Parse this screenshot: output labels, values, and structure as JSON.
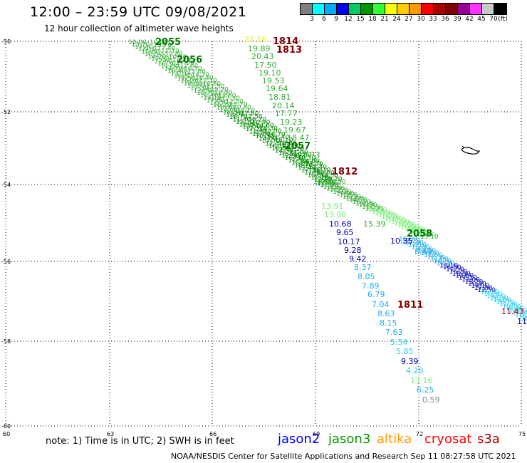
{
  "title": "12:00 – 23:59 UTC 09/08/2021",
  "subtitle": "12 hour collection of altimeter wave heights",
  "legend": {
    "colors": [
      "#7f7f7f",
      "#00ffff",
      "#00aaff",
      "#0000ff",
      "#00cc66",
      "#009900",
      "#33ff33",
      "#ffff00",
      "#ffcc00",
      "#ff9900",
      "#ff0000",
      "#aa0000",
      "#800000",
      "#990099",
      "#ff33ff",
      "#c8c8c8",
      "#000000"
    ],
    "labels": [
      "3",
      "6",
      "9",
      "12",
      "15",
      "18",
      "21",
      "24",
      "27",
      "30",
      "33",
      "36",
      "39",
      "42",
      "45",
      "70",
      "(ft)"
    ]
  },
  "axes": {
    "lat_labels": [
      "-50",
      "-52",
      "-54",
      "-56",
      "-58",
      "-60"
    ],
    "lon_labels": [
      "60",
      "63",
      "66",
      "69",
      "72",
      "75"
    ]
  },
  "pass_labels": [
    {
      "text": "2055",
      "color": "#007700"
    },
    {
      "text": "1814",
      "color": "#800000"
    },
    {
      "text": "1813",
      "color": "#800000"
    },
    {
      "text": "2056",
      "color": "#007700"
    },
    {
      "text": "2057",
      "color": "#007700"
    },
    {
      "text": "1812",
      "color": "#800000"
    },
    {
      "text": "2058",
      "color": "#007700"
    },
    {
      "text": "1811",
      "color": "#800000"
    }
  ],
  "track_values": [
    {
      "text": "21.16",
      "color": "#eeee00"
    },
    {
      "text": "19.89",
      "color": "#33aa33"
    },
    {
      "text": "20.43",
      "color": "#33aa33"
    },
    {
      "text": "17.50",
      "color": "#33aa33"
    },
    {
      "text": "19.10",
      "color": "#33aa33"
    },
    {
      "text": "19.53",
      "color": "#33aa33"
    },
    {
      "text": "19.64",
      "color": "#33aa33"
    },
    {
      "text": "18.81",
      "color": "#33aa33"
    },
    {
      "text": "20.14",
      "color": "#33aa33"
    },
    {
      "text": "17.77",
      "color": "#33aa33"
    },
    {
      "text": "19.23",
      "color": "#33aa33"
    },
    {
      "text": "19.67",
      "color": "#33aa33"
    },
    {
      "text": "18.47",
      "color": "#33aa33"
    },
    {
      "text": "18.73",
      "color": "#33aa33"
    },
    {
      "text": "17.06",
      "color": "#33aa33"
    },
    {
      "text": "14",
      "color": "#33aa33"
    },
    {
      "text": "13.91",
      "color": "#77ee77"
    },
    {
      "text": "13.08",
      "color": "#77ee77"
    },
    {
      "text": "10.68",
      "color": "#0000bb"
    },
    {
      "text": "15.39",
      "color": "#33aa33"
    },
    {
      "text": "9.65",
      "color": "#0000bb"
    },
    {
      "text": "10.17",
      "color": "#0000bb"
    },
    {
      "text": "9.28",
      "color": "#0000bb"
    },
    {
      "text": "9.42",
      "color": "#0000bb"
    },
    {
      "text": "8.37",
      "color": "#22aaee"
    },
    {
      "text": "8.05",
      "color": "#22aaee"
    },
    {
      "text": "7.89",
      "color": "#22aaee"
    },
    {
      "text": "6.79",
      "color": "#22aaee"
    },
    {
      "text": "7.04",
      "color": "#22aaee"
    },
    {
      "text": "8.63",
      "color": "#22aaee"
    },
    {
      "text": "8.15",
      "color": "#22aaee"
    },
    {
      "text": "7.63",
      "color": "#22aaee"
    },
    {
      "text": "5.54",
      "color": "#22ccee"
    },
    {
      "text": "5.85",
      "color": "#22ccee"
    },
    {
      "text": "9.39",
      "color": "#0000bb"
    },
    {
      "text": "4.28",
      "color": "#22ccee"
    },
    {
      "text": "13.16",
      "color": "#77ee77"
    },
    {
      "text": "6.25",
      "color": "#22aaee"
    },
    {
      "text": "0.59",
      "color": "#888888"
    },
    {
      "text": "8.49",
      "color": "#22aaee"
    },
    {
      "text": "10.35",
      "color": "#0000bb"
    },
    {
      "text": "11.43",
      "color": "#aa0000"
    },
    {
      "text": "11",
      "color": "#0000bb"
    }
  ],
  "note": "note: 1) Time is in UTC; 2) SWH is in feet",
  "satellites": [
    {
      "name": "jason2",
      "color": "#0000ff"
    },
    {
      "name": "jason3",
      "color": "#009900"
    },
    {
      "name": "altika",
      "color": "#ff9900"
    },
    {
      "name": "cryosat",
      "color": "#ff0000"
    },
    {
      "name": "s3a",
      "color": "#aa0000"
    }
  ],
  "credit": "NOAA/NESDIS Center for Satellite Applications and Research    Sep 11 08:27:58 UTC 2021"
}
